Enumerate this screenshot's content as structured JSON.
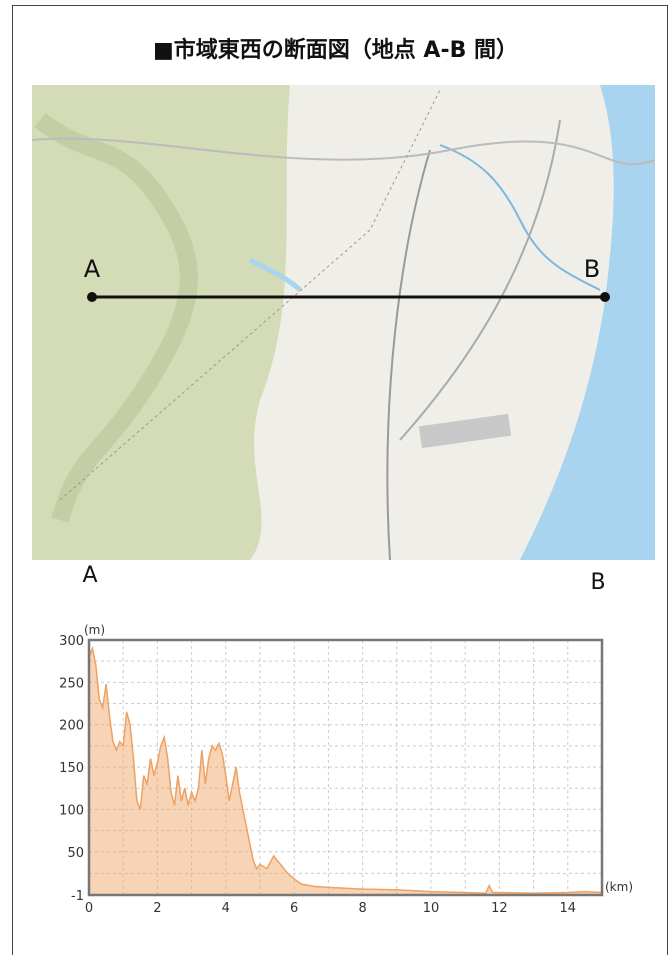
{
  "title": "■市域東西の断面図（地点 A-B 間）",
  "map": {
    "label_a": "A",
    "label_b": "B"
  },
  "profile_labels": {
    "start": "A",
    "end": "B"
  },
  "chart_data": {
    "type": "area",
    "y_label": "(m)",
    "x_label": "(km)",
    "color": "#f0a060",
    "xlim": [
      0,
      15
    ],
    "ylim": [
      -1,
      300
    ],
    "xticks": [
      0,
      2,
      4,
      6,
      8,
      10,
      12,
      14
    ],
    "yticks": [
      -1,
      50,
      100,
      150,
      200,
      250,
      300
    ],
    "grid": true,
    "x": [
      0,
      0.1,
      0.2,
      0.3,
      0.4,
      0.5,
      0.6,
      0.7,
      0.8,
      0.9,
      1.0,
      1.1,
      1.2,
      1.3,
      1.4,
      1.5,
      1.6,
      1.7,
      1.8,
      1.9,
      2.0,
      2.1,
      2.2,
      2.3,
      2.4,
      2.5,
      2.6,
      2.7,
      2.8,
      2.9,
      3.0,
      3.1,
      3.2,
      3.3,
      3.4,
      3.5,
      3.6,
      3.7,
      3.8,
      3.9,
      4.0,
      4.1,
      4.2,
      4.3,
      4.4,
      4.5,
      4.6,
      4.7,
      4.8,
      4.9,
      5.0,
      5.2,
      5.4,
      5.6,
      5.8,
      6.0,
      6.2,
      6.6,
      7,
      8,
      9,
      10,
      11,
      11.6,
      11.7,
      11.8,
      12,
      13,
      14,
      14.5,
      15
    ],
    "values": [
      280,
      290,
      270,
      230,
      220,
      248,
      210,
      180,
      170,
      180,
      175,
      215,
      200,
      160,
      110,
      100,
      140,
      130,
      160,
      140,
      155,
      175,
      185,
      160,
      120,
      105,
      140,
      110,
      125,
      105,
      120,
      110,
      125,
      170,
      130,
      160,
      175,
      170,
      178,
      165,
      140,
      110,
      130,
      150,
      120,
      100,
      80,
      60,
      40,
      30,
      35,
      30,
      45,
      35,
      25,
      18,
      12,
      9,
      8,
      6,
      5,
      3,
      2,
      1,
      10,
      2,
      2,
      1,
      2,
      3,
      2
    ]
  }
}
